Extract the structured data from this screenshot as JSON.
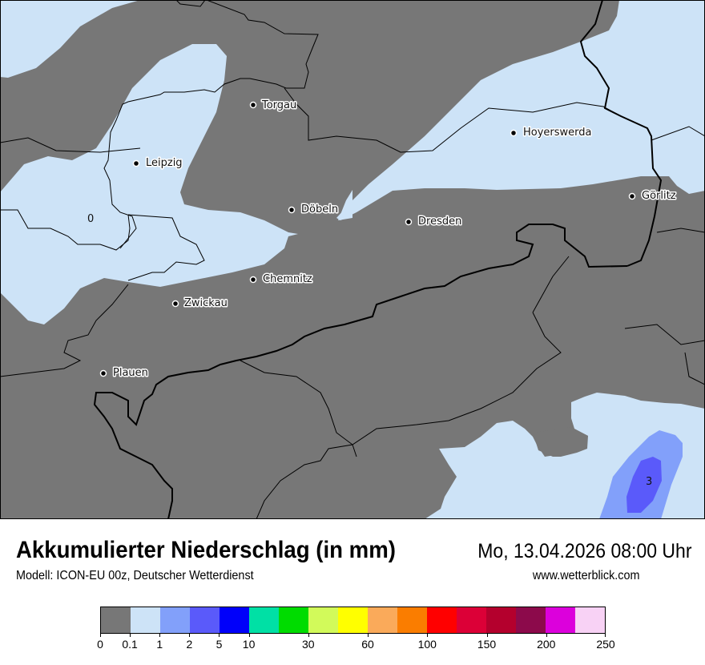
{
  "header": {
    "title": "Akkumulierter Niederschlag (in mm)",
    "datetime": "Mo, 13.04.2026 08:00 Uhr",
    "model": "Modell: ICON-EU 00z, Deutscher Wetterdienst",
    "website": "www.wetterblick.com"
  },
  "map": {
    "cities": [
      {
        "name": "Torgau"
      },
      {
        "name": "Hoyerswerda"
      },
      {
        "name": "Leipzig"
      },
      {
        "name": "Görlitz"
      },
      {
        "name": "Döbeln"
      },
      {
        "name": "Dresden"
      },
      {
        "name": "Chemnitz"
      },
      {
        "name": "Zwickau"
      },
      {
        "name": "Plauen"
      }
    ],
    "value_labels": [
      "0",
      "3"
    ],
    "colors": {
      "background": "#777777",
      "border": "#000000"
    }
  },
  "legend": {
    "unit": "mm",
    "colors": [
      "#777777",
      "#cde3f7",
      "#82a0fa",
      "#5a5afa",
      "#0000fa",
      "#00e0a5",
      "#00dc00",
      "#d2fa5a",
      "#ffff00",
      "#faaa5a",
      "#fa7d00",
      "#ff0000",
      "#dc0037",
      "#b4002d",
      "#8c0a4b",
      "#dc00dc",
      "#f8d2f5"
    ],
    "tick_labels": [
      "0",
      "0.1",
      "1",
      "2",
      "5",
      "10",
      "30",
      "60",
      "100",
      "150",
      "200",
      "250"
    ]
  }
}
